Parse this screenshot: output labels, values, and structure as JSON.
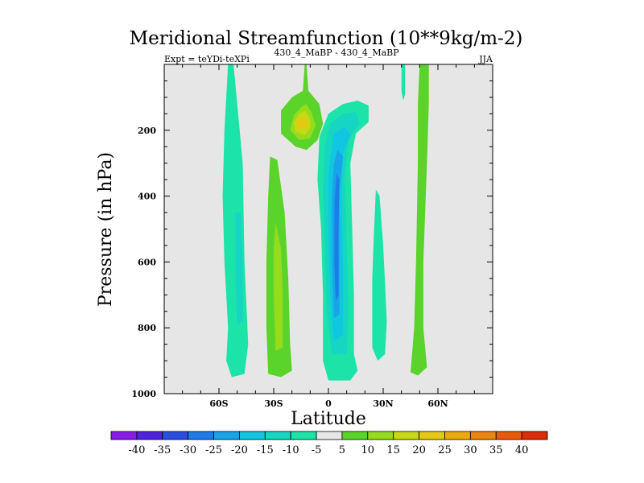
{
  "chart_data": {
    "type": "contour",
    "title": "Meridional Streamfunction (10**9kg/m-2)",
    "subtitle_left": "Expt = teYDi-teXPi",
    "subtitle_center": "430_4_MaBP - 430_4_MaBP",
    "subtitle_right": "JJA",
    "xlabel": "Latitude",
    "ylabel": "Pressure (in hPa)",
    "xlim": [
      -90,
      90
    ],
    "ylim": [
      1000,
      0
    ],
    "x_ticks": [
      -60,
      -30,
      0,
      30,
      60
    ],
    "x_tick_labels": [
      "60S",
      "30S",
      "0",
      "30N",
      "60N"
    ],
    "y_ticks": [
      200,
      400,
      600,
      800,
      1000
    ],
    "y_tick_labels": [
      "200",
      "400",
      "600",
      "800",
      "1000"
    ],
    "colorbar": {
      "levels": [
        -40,
        -35,
        -30,
        -25,
        -20,
        -15,
        -10,
        -5,
        5,
        10,
        15,
        20,
        25,
        30,
        35,
        40
      ],
      "labels": [
        "-40",
        "-35",
        "-30",
        "-25",
        "-20",
        "-15",
        "-10",
        "-5",
        "5",
        "10",
        "15",
        "20",
        "25",
        "30",
        "35",
        "40"
      ],
      "colors": [
        "#8a1ce8",
        "#4f22dc",
        "#2a4ee0",
        "#1e7ce8",
        "#18a4e8",
        "#10c6e0",
        "#14d6c2",
        "#1ce4a8",
        "#e6e6e6",
        "#5ad42a",
        "#94dc1c",
        "#c8d814",
        "#e6c814",
        "#ecaa10",
        "#ec8410",
        "#ea5a0c",
        "#dc2c08"
      ]
    },
    "background_color": "#e6e6e6",
    "regions": [
      {
        "name": "band-60S-low",
        "color": "#1ce4a8",
        "path": [
          [
            -55,
            0
          ],
          [
            -52,
            0
          ],
          [
            -50,
            120
          ],
          [
            -47,
            300
          ],
          [
            -46,
            600
          ],
          [
            -44,
            850
          ],
          [
            -46,
            940
          ],
          [
            -53,
            950
          ],
          [
            -56,
            900
          ],
          [
            -55,
            800
          ],
          [
            -57,
            600
          ],
          [
            -58,
            400
          ],
          [
            -57,
            200
          ]
        ]
      },
      {
        "name": "band-60S-core",
        "color": "#14d6c2",
        "path": [
          [
            -51,
            450
          ],
          [
            -48,
            450
          ],
          [
            -47,
            600
          ],
          [
            -47,
            780
          ],
          [
            -50,
            790
          ],
          [
            -51,
            650
          ]
        ]
      },
      {
        "name": "band-30S",
        "color": "#5ad42a",
        "path": [
          [
            -32,
            280
          ],
          [
            -28,
            290
          ],
          [
            -24,
            450
          ],
          [
            -22,
            650
          ],
          [
            -21,
            850
          ],
          [
            -20,
            930
          ],
          [
            -26,
            950
          ],
          [
            -33,
            940
          ],
          [
            -34,
            800
          ],
          [
            -34,
            600
          ],
          [
            -33,
            400
          ]
        ]
      },
      {
        "name": "band-30S-core",
        "color": "#94dc1c",
        "path": [
          [
            -29,
            480
          ],
          [
            -26,
            560
          ],
          [
            -25,
            700
          ],
          [
            -25,
            860
          ],
          [
            -29,
            870
          ],
          [
            -30,
            700
          ],
          [
            -30,
            560
          ]
        ]
      },
      {
        "name": "upper-high",
        "color": "#5ad42a",
        "path": [
          [
            -13,
            0
          ],
          [
            -12,
            0
          ],
          [
            -11,
            80
          ],
          [
            -5,
            120
          ],
          [
            -3,
            180
          ],
          [
            -6,
            230
          ],
          [
            -12,
            260
          ],
          [
            -18,
            250
          ],
          [
            -26,
            210
          ],
          [
            -26,
            140
          ],
          [
            -20,
            100
          ],
          [
            -14,
            80
          ]
        ]
      },
      {
        "name": "upper-high-l2",
        "color": "#94dc1c",
        "path": [
          [
            -12,
            120
          ],
          [
            -9,
            150
          ],
          [
            -7,
            185
          ],
          [
            -10,
            225
          ],
          [
            -16,
            230
          ],
          [
            -21,
            200
          ],
          [
            -19,
            155
          ],
          [
            -15,
            130
          ]
        ]
      },
      {
        "name": "upper-high-l3",
        "color": "#c8d814",
        "path": [
          [
            -13,
            140
          ],
          [
            -10,
            165
          ],
          [
            -10,
            195
          ],
          [
            -13,
            215
          ],
          [
            -18,
            205
          ],
          [
            -19,
            175
          ],
          [
            -16,
            150
          ]
        ]
      },
      {
        "name": "upper-high-core",
        "color": "#e6c814",
        "path": [
          [
            -14,
            160
          ],
          [
            -12,
            172
          ],
          [
            -12,
            188
          ],
          [
            -15,
            195
          ],
          [
            -17,
            185
          ],
          [
            -17,
            170
          ]
        ]
      },
      {
        "name": "equator-low-l1",
        "color": "#1ce4a8",
        "path": [
          [
            0,
            150
          ],
          [
            8,
            120
          ],
          [
            16,
            110
          ],
          [
            22,
            125
          ],
          [
            22,
            175
          ],
          [
            15,
            210
          ],
          [
            12,
            300
          ],
          [
            13,
            500
          ],
          [
            14,
            700
          ],
          [
            14,
            880
          ],
          [
            16,
            930
          ],
          [
            12,
            960
          ],
          [
            0,
            960
          ],
          [
            -3,
            900
          ],
          [
            -3,
            700
          ],
          [
            -4,
            500
          ],
          [
            -6,
            350
          ],
          [
            -5,
            220
          ]
        ]
      },
      {
        "name": "equator-low-l2",
        "color": "#14d6c2",
        "path": [
          [
            1,
            180
          ],
          [
            8,
            150
          ],
          [
            15,
            145
          ],
          [
            17,
            180
          ],
          [
            11,
            230
          ],
          [
            9,
            350
          ],
          [
            10,
            550
          ],
          [
            11,
            750
          ],
          [
            10,
            880
          ],
          [
            2,
            880
          ],
          [
            -1,
            750
          ],
          [
            -2,
            550
          ],
          [
            -3,
            380
          ],
          [
            -2,
            250
          ]
        ]
      },
      {
        "name": "equator-low-l3",
        "color": "#10c6e0",
        "path": [
          [
            3,
            210
          ],
          [
            9,
            190
          ],
          [
            12,
            215
          ],
          [
            8,
            270
          ],
          [
            7,
            400
          ],
          [
            8,
            620
          ],
          [
            8,
            820
          ],
          [
            3,
            840
          ],
          [
            1,
            700
          ],
          [
            0,
            500
          ],
          [
            0,
            330
          ]
        ]
      },
      {
        "name": "equator-low-l4",
        "color": "#18a4e8",
        "path": [
          [
            5,
            260
          ],
          [
            8,
            280
          ],
          [
            6,
            380
          ],
          [
            6,
            580
          ],
          [
            6,
            760
          ],
          [
            3,
            770
          ],
          [
            2,
            600
          ],
          [
            2,
            400
          ],
          [
            3,
            300
          ]
        ]
      },
      {
        "name": "equator-low-core",
        "color": "#1e7ce8",
        "path": [
          [
            4.5,
            330
          ],
          [
            6,
            350
          ],
          [
            5.5,
            500
          ],
          [
            5.5,
            700
          ],
          [
            4,
            720
          ],
          [
            3.2,
            600
          ],
          [
            3.3,
            420
          ]
        ]
      },
      {
        "name": "band-30N",
        "color": "#1ce4a8",
        "path": [
          [
            26,
            380
          ],
          [
            28,
            400
          ],
          [
            30,
            550
          ],
          [
            32,
            780
          ],
          [
            31,
            880
          ],
          [
            27,
            900
          ],
          [
            24,
            860
          ],
          [
            24,
            650
          ],
          [
            25,
            500
          ]
        ]
      },
      {
        "name": "band-60N",
        "color": "#5ad42a",
        "path": [
          [
            50,
            0
          ],
          [
            55,
            0
          ],
          [
            55,
            120
          ],
          [
            54,
            300
          ],
          [
            52,
            600
          ],
          [
            52,
            800
          ],
          [
            54,
            920
          ],
          [
            49,
            945
          ],
          [
            45,
            935
          ],
          [
            47,
            800
          ],
          [
            48,
            600
          ],
          [
            49,
            300
          ],
          [
            49,
            120
          ]
        ]
      },
      {
        "name": "top-45N",
        "color": "#1ce4a8",
        "path": [
          [
            40,
            0
          ],
          [
            42,
            0
          ],
          [
            42,
            40
          ],
          [
            42,
            90
          ],
          [
            41,
            110
          ],
          [
            40,
            80
          ]
        ]
      },
      {
        "name": "top-15S",
        "color": "#5ad42a",
        "path": [
          [
            -13,
            0
          ],
          [
            -12,
            0
          ],
          [
            -12,
            60
          ],
          [
            -12.8,
            60
          ]
        ]
      }
    ]
  }
}
